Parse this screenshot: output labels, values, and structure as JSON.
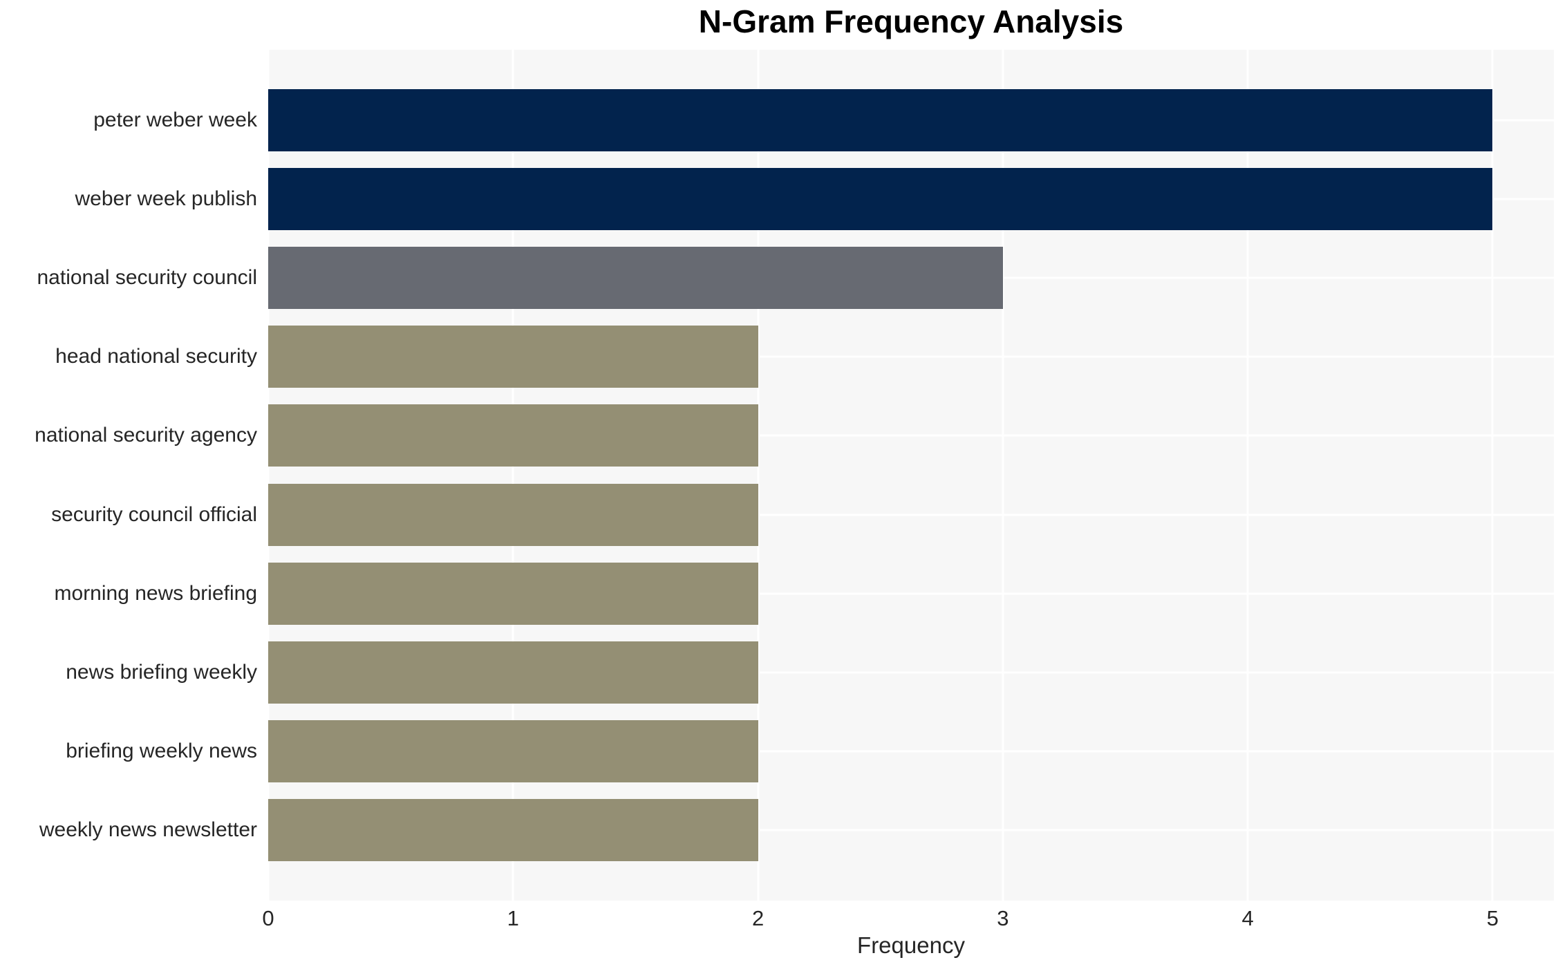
{
  "chart_data": {
    "type": "bar",
    "orientation": "horizontal",
    "title": "N-Gram Frequency Analysis",
    "xlabel": "Frequency",
    "ylabel": "",
    "categories": [
      "peter weber week",
      "weber week publish",
      "national security council",
      "head national security",
      "national security agency",
      "security council official",
      "morning news briefing",
      "news briefing weekly",
      "briefing weekly news",
      "weekly news newsletter"
    ],
    "values": [
      5,
      5,
      3,
      2,
      2,
      2,
      2,
      2,
      2,
      2
    ],
    "bar_colors": [
      "#02234d",
      "#02234d",
      "#676a72",
      "#948f74",
      "#948f74",
      "#948f74",
      "#948f74",
      "#948f74",
      "#948f74",
      "#948f74"
    ],
    "xticks": [
      0,
      1,
      2,
      3,
      4,
      5
    ],
    "xlim": [
      0,
      5.25
    ],
    "grid": "on",
    "legend": "none",
    "colors": {
      "plot_background": "#f7f7f7",
      "grid_line": "#ffffff",
      "tick_text": "#262626",
      "title_text": "#000000"
    }
  }
}
